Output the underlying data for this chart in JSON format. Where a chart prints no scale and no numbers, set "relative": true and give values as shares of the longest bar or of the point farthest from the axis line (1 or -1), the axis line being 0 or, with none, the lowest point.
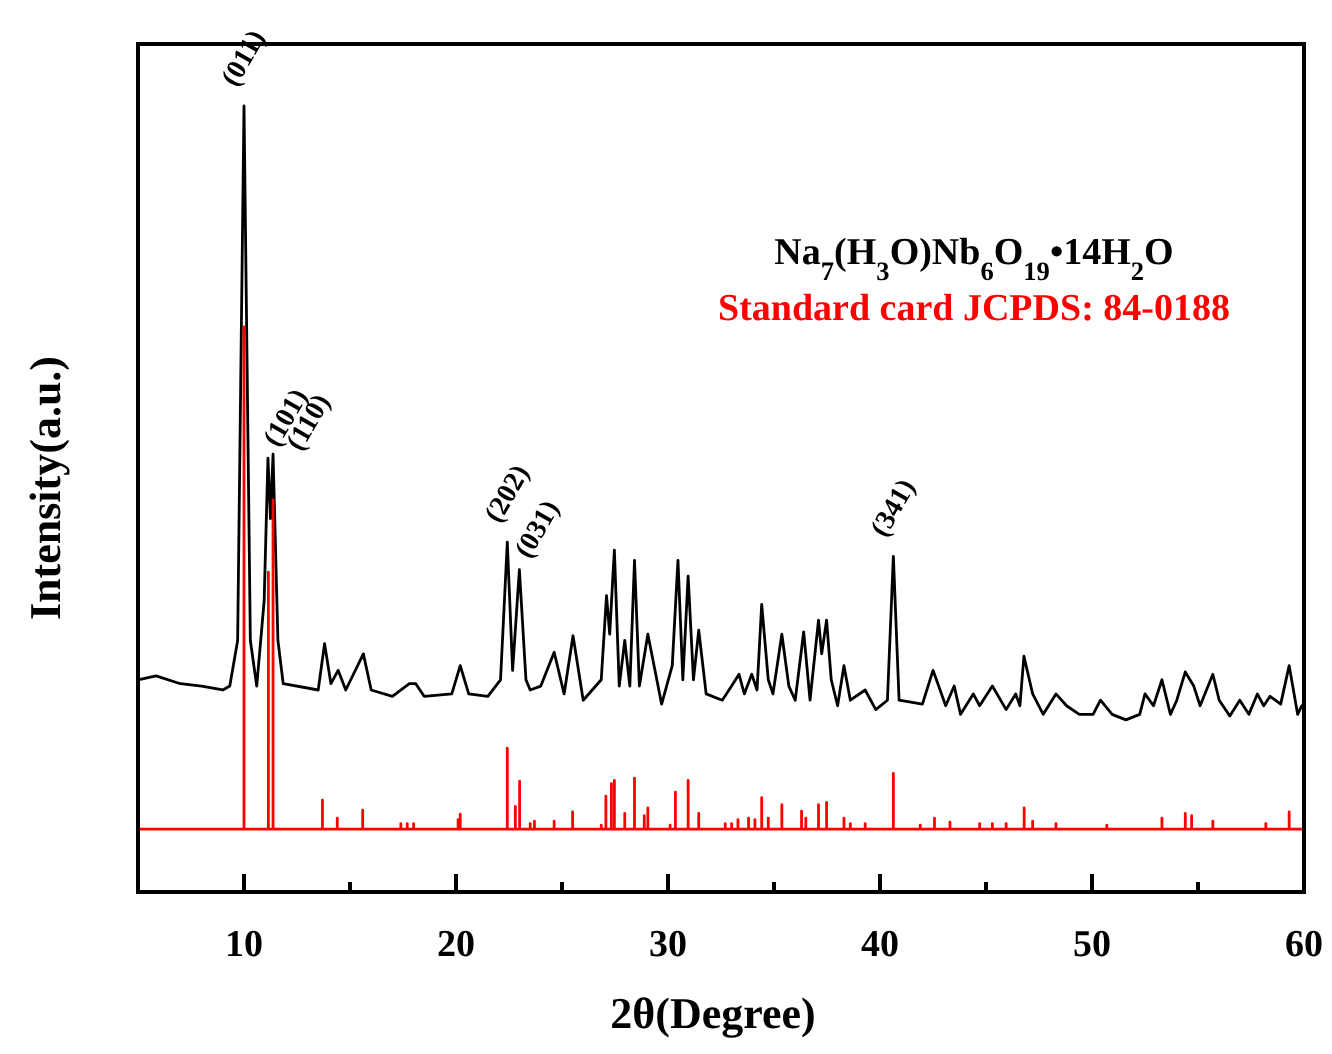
{
  "chart_data": {
    "type": "line",
    "relative": true,
    "xlabel": "2θ(Degree)",
    "ylabel": "Intensity(a.u.)",
    "xlim": [
      5,
      60
    ],
    "xticks": [
      10,
      {
        "value": 15,
        "label": null
      },
      20,
      {
        "value": 25,
        "label": null
      },
      30,
      {
        "value": 35,
        "label": null
      },
      40,
      {
        "value": 45,
        "label": null
      },
      50,
      {
        "value": 55,
        "label": null
      },
      60
    ],
    "tick_labels": "x",
    "legend": "top right",
    "grid": false,
    "marker": "none",
    "line_style": "solid",
    "series": [
      {
        "name": "Na$_{7}$(H$_{3}$O)Nb$_{6}$O$_{19}$•14H$_{2}$O",
        "color": "#000000",
        "x": [
          5.0,
          5.85,
          7.0,
          8.0,
          9.0,
          9.33,
          9.7,
          10.0,
          10.3,
          10.6,
          10.95,
          11.13,
          11.25,
          11.37,
          11.6,
          11.85,
          13.5,
          13.8,
          14.1,
          14.44,
          14.8,
          15.63,
          16.0,
          17.0,
          17.8,
          18.1,
          18.5,
          19.8,
          20.2,
          20.6,
          21.5,
          22.1,
          22.42,
          22.67,
          22.99,
          23.3,
          23.5,
          24.0,
          24.63,
          25.1,
          25.52,
          26.0,
          26.85,
          27.1,
          27.25,
          27.47,
          27.7,
          27.96,
          28.2,
          28.42,
          28.65,
          29.05,
          29.7,
          30.2,
          30.47,
          30.7,
          30.95,
          31.2,
          31.45,
          31.8,
          32.56,
          33.0,
          33.35,
          33.6,
          33.95,
          34.2,
          34.42,
          34.73,
          34.95,
          35.37,
          35.7,
          36.0,
          36.4,
          36.7,
          37.1,
          37.25,
          37.48,
          37.7,
          38.0,
          38.3,
          38.6,
          39.3,
          39.8,
          40.35,
          40.63,
          40.9,
          42.0,
          42.5,
          43.1,
          43.5,
          43.8,
          44.4,
          44.7,
          45.3,
          45.95,
          46.4,
          46.6,
          46.79,
          47.2,
          47.7,
          48.3,
          48.8,
          49.4,
          50.05,
          50.4,
          50.95,
          51.6,
          52.25,
          52.5,
          52.9,
          53.3,
          53.7,
          54.0,
          54.4,
          54.8,
          55.1,
          55.7,
          56.0,
          56.5,
          56.97,
          57.4,
          57.8,
          58.1,
          58.4,
          58.9,
          59.3,
          59.7,
          59.9
        ],
        "values": [
          0.27,
          0.275,
          0.265,
          0.262,
          0.257,
          0.262,
          0.32,
          1.0,
          0.32,
          0.262,
          0.37,
          0.552,
          0.475,
          0.557,
          0.32,
          0.265,
          0.257,
          0.316,
          0.265,
          0.282,
          0.257,
          0.303,
          0.257,
          0.249,
          0.265,
          0.265,
          0.249,
          0.252,
          0.288,
          0.252,
          0.249,
          0.27,
          0.445,
          0.282,
          0.41,
          0.27,
          0.257,
          0.262,
          0.305,
          0.252,
          0.326,
          0.244,
          0.27,
          0.377,
          0.328,
          0.435,
          0.262,
          0.32,
          0.262,
          0.422,
          0.262,
          0.328,
          0.239,
          0.288,
          0.422,
          0.27,
          0.402,
          0.27,
          0.333,
          0.252,
          0.244,
          0.262,
          0.277,
          0.252,
          0.277,
          0.257,
          0.366,
          0.27,
          0.252,
          0.328,
          0.262,
          0.244,
          0.331,
          0.244,
          0.346,
          0.303,
          0.346,
          0.27,
          0.237,
          0.288,
          0.244,
          0.257,
          0.232,
          0.244,
          0.427,
          0.244,
          0.239,
          0.282,
          0.237,
          0.262,
          0.226,
          0.252,
          0.237,
          0.262,
          0.232,
          0.252,
          0.237,
          0.3,
          0.252,
          0.226,
          0.252,
          0.237,
          0.226,
          0.226,
          0.244,
          0.226,
          0.219,
          0.226,
          0.252,
          0.237,
          0.27,
          0.226,
          0.244,
          0.28,
          0.262,
          0.237,
          0.277,
          0.244,
          0.224,
          0.244,
          0.226,
          0.252,
          0.237,
          0.249,
          0.239,
          0.288,
          0.226,
          0.237
        ]
      },
      {
        "name": "Standard card JCPDS: 84-0188",
        "color": "#ff0000",
        "x": [
          5,
          10.0,
          10.0,
          10.0,
          11.15,
          11.15,
          11.15,
          11.37,
          11.37,
          11.37,
          13.7,
          13.7,
          13.7,
          14.4,
          14.4,
          14.4,
          15.6,
          15.6,
          15.6,
          17.4,
          17.4,
          17.4,
          17.7,
          17.7,
          17.7,
          18.0,
          18.0,
          18.0,
          20.1,
          20.1,
          20.1,
          20.2,
          20.2,
          20.2,
          22.42,
          22.42,
          22.42,
          22.8,
          22.8,
          22.8,
          23.0,
          23.0,
          23.0,
          23.5,
          23.5,
          23.5,
          23.7,
          23.7,
          23.7,
          24.63,
          24.63,
          24.63,
          25.5,
          25.5,
          25.5,
          26.85,
          26.85,
          26.85,
          27.07,
          27.07,
          27.07,
          27.33,
          27.33,
          27.33,
          27.47,
          27.47,
          27.47,
          27.96,
          27.96,
          27.96,
          28.42,
          28.42,
          28.42,
          28.88,
          28.88,
          28.88,
          29.05,
          29.05,
          29.05,
          30.1,
          30.1,
          30.1,
          30.35,
          30.35,
          30.35,
          30.95,
          30.95,
          30.95,
          31.45,
          31.45,
          31.45,
          32.7,
          32.7,
          32.7,
          33.0,
          33.0,
          33.0,
          33.3,
          33.3,
          33.3,
          33.8,
          33.8,
          33.8,
          34.1,
          34.1,
          34.1,
          34.42,
          34.42,
          34.42,
          34.73,
          34.73,
          34.73,
          35.37,
          35.37,
          35.37,
          36.3,
          36.3,
          36.3,
          36.5,
          36.5,
          36.5,
          37.1,
          37.1,
          37.1,
          37.48,
          37.48,
          37.48,
          38.3,
          38.3,
          38.3,
          38.6,
          38.6,
          38.6,
          39.3,
          39.3,
          39.3,
          40.63,
          40.63,
          40.63,
          41.9,
          41.9,
          41.9,
          42.57,
          42.57,
          42.57,
          43.3,
          43.3,
          43.3,
          44.7,
          44.7,
          44.7,
          45.3,
          45.3,
          45.3,
          45.95,
          45.95,
          45.95,
          46.8,
          46.8,
          46.8,
          47.2,
          47.2,
          47.2,
          48.3,
          48.3,
          48.3,
          50.7,
          50.7,
          50.7,
          53.3,
          53.3,
          53.3,
          54.4,
          54.4,
          54.4,
          54.7,
          54.7,
          54.7,
          55.7,
          55.7,
          55.7,
          58.2,
          58.2,
          58.2,
          59.3,
          59.3,
          59.3,
          60
        ],
        "values": [
          0.08,
          0.08,
          0.719,
          0.08,
          0.08,
          0.407,
          0.08,
          0.08,
          0.499,
          0.08,
          0.08,
          0.117,
          0.08,
          0.08,
          0.094,
          0.08,
          0.08,
          0.104,
          0.08,
          0.08,
          0.087,
          0.08,
          0.08,
          0.087,
          0.08,
          0.08,
          0.087,
          0.08,
          0.08,
          0.092,
          0.08,
          0.08,
          0.099,
          0.08,
          0.08,
          0.183,
          0.08,
          0.08,
          0.109,
          0.08,
          0.08,
          0.141,
          0.08,
          0.08,
          0.087,
          0.08,
          0.08,
          0.09,
          0.08,
          0.08,
          0.09,
          0.08,
          0.08,
          0.102,
          0.08,
          0.08,
          0.085,
          0.08,
          0.08,
          0.122,
          0.08,
          0.08,
          0.138,
          0.08,
          0.08,
          0.142,
          0.08,
          0.08,
          0.1,
          0.08,
          0.08,
          0.145,
          0.08,
          0.08,
          0.097,
          0.08,
          0.08,
          0.107,
          0.08,
          0.08,
          0.085,
          0.08,
          0.08,
          0.127,
          0.08,
          0.08,
          0.142,
          0.08,
          0.08,
          0.1,
          0.08,
          0.08,
          0.087,
          0.08,
          0.08,
          0.087,
          0.08,
          0.08,
          0.092,
          0.08,
          0.08,
          0.094,
          0.08,
          0.08,
          0.092,
          0.08,
          0.08,
          0.12,
          0.08,
          0.08,
          0.094,
          0.08,
          0.08,
          0.111,
          0.08,
          0.08,
          0.103,
          0.08,
          0.08,
          0.094,
          0.08,
          0.08,
          0.111,
          0.08,
          0.08,
          0.114,
          0.08,
          0.08,
          0.094,
          0.08,
          0.08,
          0.087,
          0.08,
          0.08,
          0.087,
          0.08,
          0.08,
          0.151,
          0.08,
          0.08,
          0.085,
          0.08,
          0.08,
          0.094,
          0.08,
          0.08,
          0.089,
          0.08,
          0.08,
          0.087,
          0.08,
          0.08,
          0.087,
          0.08,
          0.08,
          0.087,
          0.08,
          0.08,
          0.107,
          0.08,
          0.08,
          0.09,
          0.08,
          0.08,
          0.087,
          0.08,
          0.08,
          0.085,
          0.08,
          0.08,
          0.094,
          0.08,
          0.08,
          0.1,
          0.08,
          0.08,
          0.097,
          0.08,
          0.08,
          0.09,
          0.08,
          0.08,
          0.087,
          0.08,
          0.08,
          0.102,
          0.08,
          0.08
        ]
      }
    ],
    "annotations": [
      {
        "text": "(011)",
        "x": 10.0,
        "y": 1.0
      },
      {
        "text": "(101)",
        "x": 11.13,
        "y": 0.552
      },
      {
        "text": "(110)",
        "x": 11.37,
        "y": 0.557
      },
      {
        "text": "(202)",
        "x": 22.42,
        "y": 0.445
      },
      {
        "text": "(031)",
        "x": 22.99,
        "y": 0.41
      },
      {
        "text": "(341)",
        "x": 40.63,
        "y": 0.427
      }
    ]
  }
}
